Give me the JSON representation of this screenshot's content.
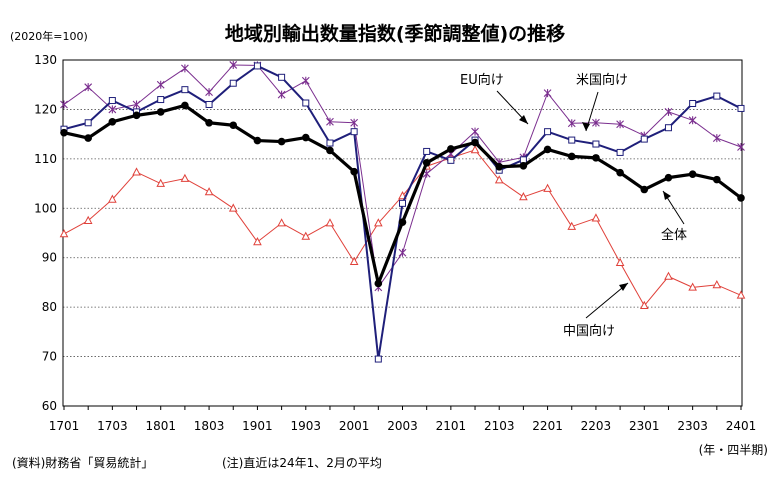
{
  "chart_data": {
    "type": "line",
    "title": "地域別輸出数量指数(季節調整値)の推移",
    "unit_label": "(2020年=100)",
    "x_unit_label": "(年・四半期)",
    "source_note": "(資料)財務省「貿易統計」",
    "footnote": "(注)直近は24年1、2月の平均",
    "ylim": [
      60,
      130
    ],
    "y_ticks": [
      "60",
      "70",
      "80",
      "90",
      "100",
      "110",
      "120",
      "130"
    ],
    "x_tick_labels": [
      "1701",
      "1703",
      "1801",
      "1803",
      "1901",
      "1903",
      "2001",
      "2003",
      "2101",
      "2103",
      "2201",
      "2203",
      "2301",
      "2303",
      "2401"
    ],
    "grid": "horizontal dotted",
    "categories": [
      "1701",
      "1702",
      "1703",
      "1704",
      "1801",
      "1802",
      "1803",
      "1804",
      "1901",
      "1902",
      "1903",
      "1904",
      "2001",
      "2002",
      "2003",
      "2004",
      "2101",
      "2102",
      "2103",
      "2104",
      "2201",
      "2202",
      "2203",
      "2204",
      "2301",
      "2302",
      "2303",
      "2304",
      "2401"
    ],
    "series": [
      {
        "name": "全体",
        "color": "#000000",
        "marker": "filled-circle",
        "values": [
          115.3,
          114.2,
          117.5,
          118.8,
          119.5,
          120.8,
          117.3,
          116.8,
          113.7,
          113.5,
          114.3,
          111.7,
          107.4,
          84.8,
          97.2,
          109.2,
          112.0,
          113.3,
          108.4,
          108.6,
          111.9,
          110.5,
          110.2,
          107.2,
          103.8,
          106.2,
          106.9,
          105.8,
          102.1
        ]
      },
      {
        "name": "EU向け",
        "color": "#1f1f7a",
        "marker": "open-square",
        "values": [
          116.0,
          117.3,
          121.8,
          119.5,
          122.0,
          124.0,
          121.0,
          125.3,
          128.8,
          126.5,
          121.3,
          113.2,
          115.5,
          69.5,
          101.0,
          111.5,
          109.7,
          113.8,
          107.7,
          109.8,
          115.5,
          113.8,
          113.0,
          111.3,
          114.0,
          116.3,
          121.2,
          122.7,
          120.2
        ]
      },
      {
        "name": "米国向け",
        "color": "#7b2f8f",
        "marker": "cross",
        "values": [
          121.0,
          124.5,
          120.0,
          121.0,
          125.0,
          128.3,
          123.5,
          129.0,
          128.9,
          123.0,
          125.8,
          117.5,
          117.3,
          84.0,
          91.0,
          107.0,
          111.0,
          115.5,
          109.3,
          110.3,
          123.3,
          117.2,
          117.3,
          117.0,
          114.7,
          119.5,
          117.8,
          114.2,
          112.4
        ]
      },
      {
        "name": "中国向け",
        "color": "#e0413a",
        "marker": "open-triangle",
        "values": [
          94.8,
          97.5,
          101.8,
          107.3,
          105.0,
          106.0,
          103.3,
          100.0,
          93.2,
          97.0,
          94.3,
          97.0,
          89.2,
          97.0,
          102.5,
          108.5,
          110.2,
          111.8,
          105.7,
          102.3,
          104.0,
          96.3,
          98.0,
          89.0,
          80.3,
          86.2,
          84.0,
          84.5,
          82.4
        ]
      }
    ]
  }
}
